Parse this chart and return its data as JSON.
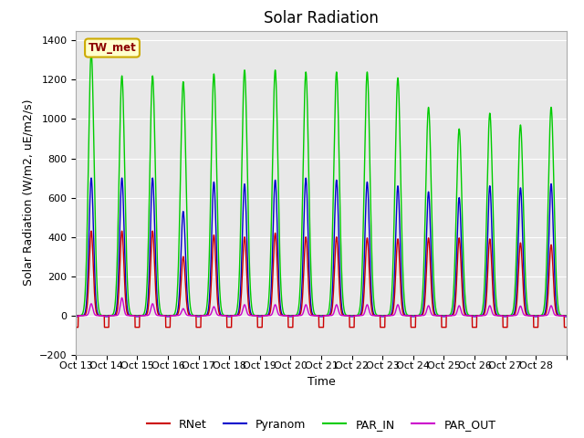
{
  "title": "Solar Radiation",
  "ylabel": "Solar Radiation (W/m2, uE/m2/s)",
  "xlabel": "Time",
  "ylim": [
    -200,
    1450
  ],
  "yticks": [
    -200,
    0,
    200,
    400,
    600,
    800,
    1000,
    1200,
    1400
  ],
  "background_color": "#e8e8e8",
  "legend_label": "TW_met",
  "series_labels": [
    "RNet",
    "Pyranom",
    "PAR_IN",
    "PAR_OUT"
  ],
  "series_colors": [
    "#cc0000",
    "#0000cc",
    "#00cc00",
    "#cc00cc"
  ],
  "xtick_labels": [
    "Oct 13",
    "Oct 14",
    "Oct 15",
    "Oct 16",
    "Oct 17",
    "Oct 18",
    "Oct 19",
    "Oct 20",
    "Oct 21",
    "Oct 22",
    "Oct 23",
    "Oct 24",
    "Oct 25",
    "Oct 26",
    "Oct 27",
    "Oct 28"
  ],
  "day_peaks_PAR_IN": [
    1340,
    1220,
    1220,
    1190,
    1230,
    1250,
    1250,
    1240,
    1240,
    1240,
    1210,
    1060,
    950,
    1030,
    970,
    1060
  ],
  "day_peaks_Pyranom": [
    700,
    700,
    700,
    530,
    680,
    670,
    690,
    700,
    690,
    680,
    660,
    630,
    600,
    660,
    650,
    670
  ],
  "day_peaks_RNet": [
    430,
    430,
    430,
    300,
    410,
    400,
    420,
    400,
    400,
    395,
    390,
    395,
    395,
    390,
    370,
    360
  ],
  "day_peaks_PAR_OUT": [
    60,
    90,
    60,
    35,
    45,
    55,
    55,
    55,
    55,
    55,
    55,
    50,
    50,
    50,
    48,
    50
  ],
  "night_RNet": -60,
  "night_Pyranom": -5,
  "night_PAR_IN": 0,
  "night_PAR_OUT": -3,
  "pts_per_day": 144,
  "n_days": 16,
  "title_fontsize": 12,
  "axis_label_fontsize": 9,
  "tick_fontsize": 8
}
